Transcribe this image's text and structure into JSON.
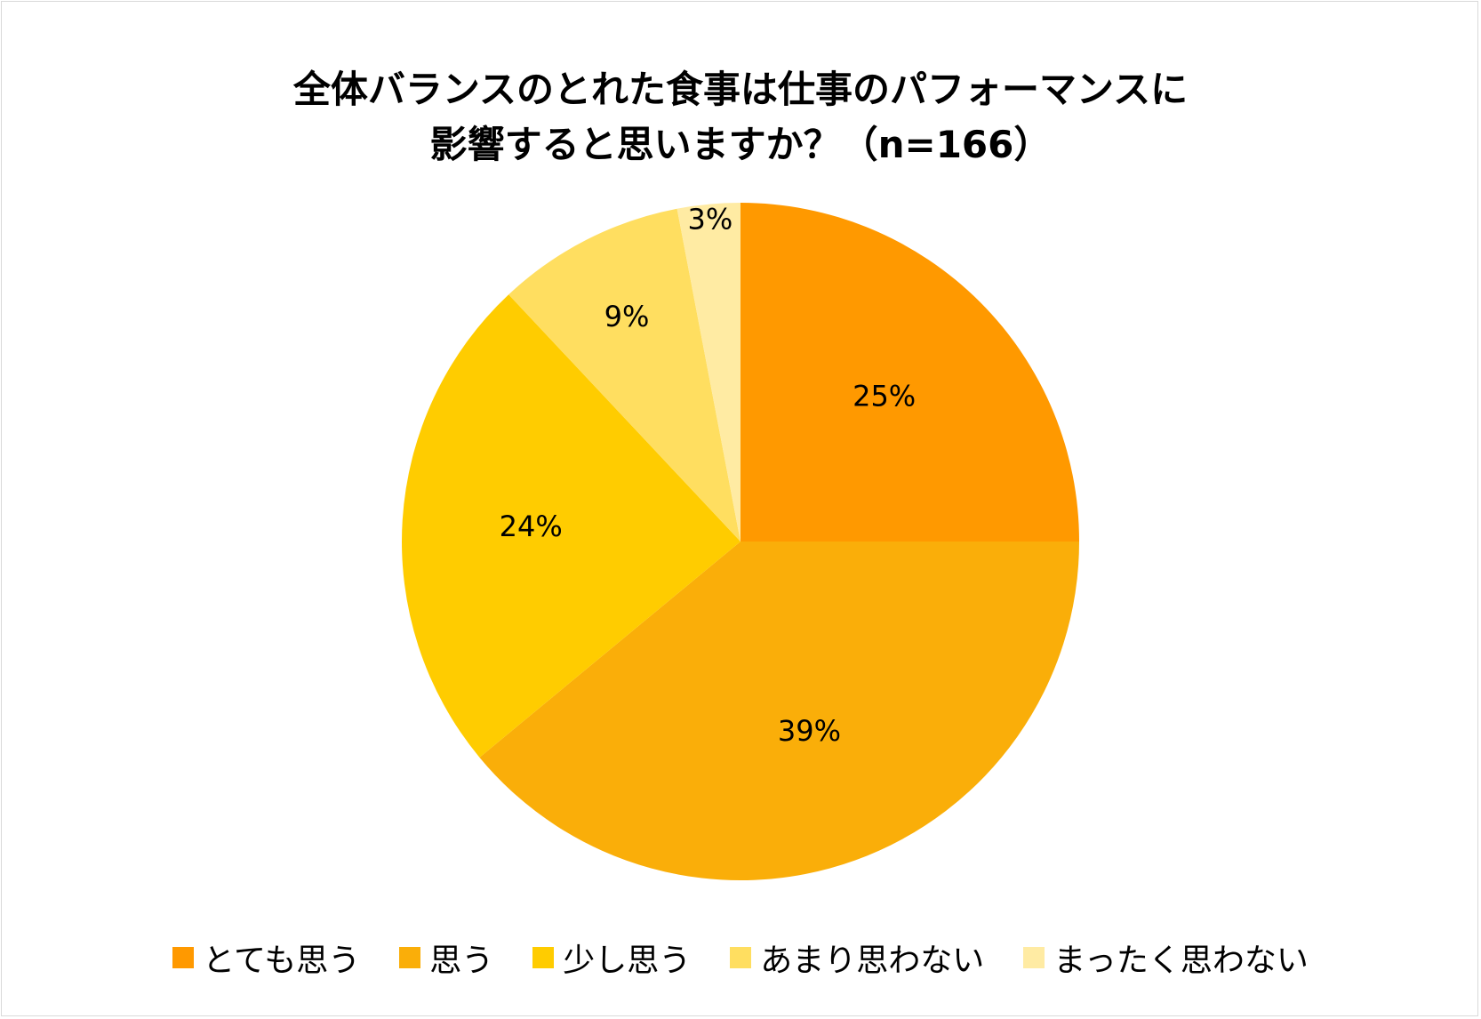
{
  "chart_data": {
    "type": "pie",
    "title_lines": [
      "全体バランスのとれた食事は仕事のパフォーマンスに",
      "影響すると思いますか？（n=166）"
    ],
    "series": [
      {
        "name": "とても思う",
        "value": 25,
        "label": "25%",
        "color": "#FF9900"
      },
      {
        "name": "思う",
        "value": 39,
        "label": "39%",
        "color": "#FAAE09"
      },
      {
        "name": "少し思う",
        "value": 24,
        "label": "24%",
        "color": "#FFCC00"
      },
      {
        "name": "あまり思わない",
        "value": 9,
        "label": "9%",
        "color": "#FFDE60"
      },
      {
        "name": "まったく思わない",
        "value": 3,
        "label": "3%",
        "color": "#FFEBA3"
      }
    ],
    "legend_position": "bottom",
    "start_angle": "12 o'clock",
    "direction": "clockwise"
  }
}
